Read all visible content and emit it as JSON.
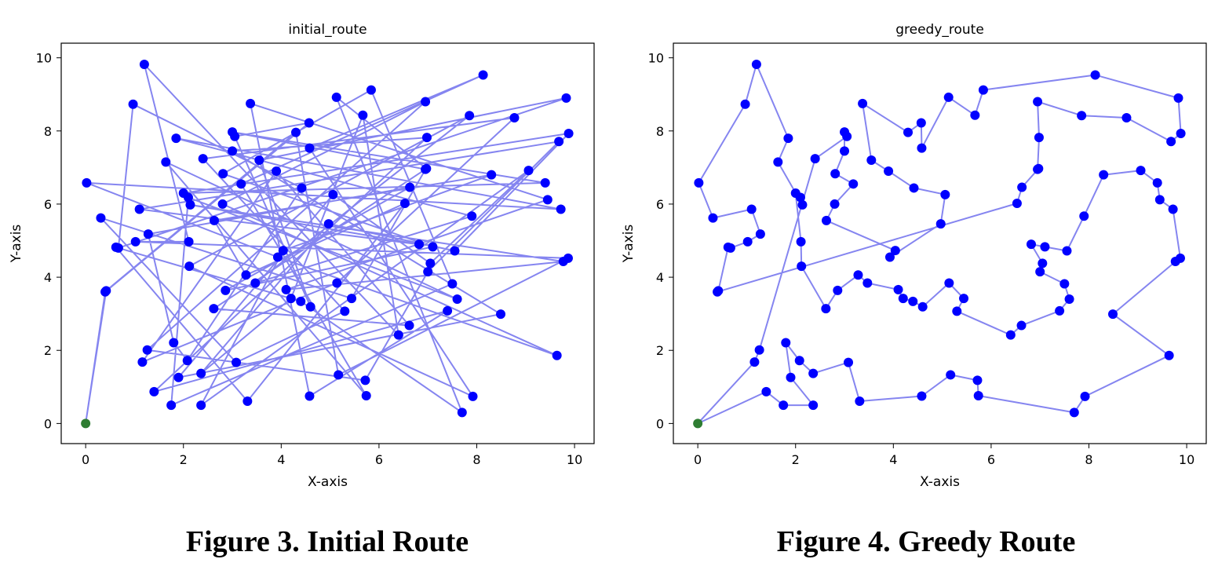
{
  "captions": {
    "left": "Figure 3. Initial Route",
    "right": "Figure 4. Greedy Route"
  },
  "colors": {
    "line": "#8585f0",
    "point": "#0000ff",
    "start": "#2e7d32",
    "axis": "#000000",
    "background": "#ffffff"
  },
  "points": [
    [
      0,
      0
    ],
    [
      1.2,
      9.82
    ],
    [
      0.97,
      8.73
    ],
    [
      0.02,
      6.58
    ],
    [
      0.31,
      5.62
    ],
    [
      1.1,
      5.86
    ],
    [
      1.28,
      5.18
    ],
    [
      1.02,
      4.97
    ],
    [
      0.67,
      4.8
    ],
    [
      0.62,
      4.82
    ],
    [
      0.42,
      3.63
    ],
    [
      0.4,
      3.6
    ],
    [
      1.85,
      7.8
    ],
    [
      1.64,
      7.15
    ],
    [
      2.0,
      6.3
    ],
    [
      2.1,
      6.18
    ],
    [
      2.14,
      5.98
    ],
    [
      2.11,
      4.97
    ],
    [
      2.12,
      4.3
    ],
    [
      2.62,
      3.14
    ],
    [
      2.4,
      7.24
    ],
    [
      2.81,
      6.83
    ],
    [
      3.0,
      7.45
    ],
    [
      3.0,
      7.97
    ],
    [
      3.05,
      7.85
    ],
    [
      3.18,
      6.55
    ],
    [
      2.8,
      6.0
    ],
    [
      2.63,
      5.55
    ],
    [
      3.37,
      8.75
    ],
    [
      3.55,
      7.2
    ],
    [
      3.9,
      6.9
    ],
    [
      4.42,
      6.44
    ],
    [
      4.3,
      7.96
    ],
    [
      4.57,
      8.22
    ],
    [
      4.58,
      7.53
    ],
    [
      5.13,
      8.92
    ],
    [
      5.67,
      8.43
    ],
    [
      5.84,
      9.12
    ],
    [
      5.06,
      6.26
    ],
    [
      4.97,
      5.46
    ],
    [
      3.93,
      4.55
    ],
    [
      4.04,
      4.73
    ],
    [
      3.28,
      4.06
    ],
    [
      3.47,
      3.84
    ],
    [
      2.86,
      3.64
    ],
    [
      4.1,
      3.66
    ],
    [
      4.2,
      3.42
    ],
    [
      4.4,
      3.34
    ],
    [
      4.6,
      3.19
    ],
    [
      5.14,
      3.84
    ],
    [
      5.44,
      3.42
    ],
    [
      5.3,
      3.07
    ],
    [
      6.4,
      2.42
    ],
    [
      6.62,
      2.68
    ],
    [
      7.4,
      3.08
    ],
    [
      7.6,
      3.4
    ],
    [
      7.5,
      3.82
    ],
    [
      7.0,
      4.15
    ],
    [
      7.05,
      4.38
    ],
    [
      7.1,
      4.83
    ],
    [
      6.82,
      4.9
    ],
    [
      7.55,
      4.72
    ],
    [
      7.9,
      5.67
    ],
    [
      6.53,
      6.02
    ],
    [
      6.63,
      6.46
    ],
    [
      6.97,
      6.97
    ],
    [
      6.95,
      6.95
    ],
    [
      6.98,
      7.82
    ],
    [
      6.95,
      8.8
    ],
    [
      7.85,
      8.42
    ],
    [
      8.77,
      8.36
    ],
    [
      9.68,
      7.71
    ],
    [
      9.88,
      7.93
    ],
    [
      9.83,
      8.9
    ],
    [
      8.13,
      9.53
    ],
    [
      8.3,
      6.8
    ],
    [
      9.06,
      6.92
    ],
    [
      9.4,
      6.58
    ],
    [
      9.45,
      6.12
    ],
    [
      9.72,
      5.86
    ],
    [
      9.87,
      4.52
    ],
    [
      9.77,
      4.43
    ],
    [
      8.49,
      2.99
    ],
    [
      9.64,
      1.86
    ],
    [
      7.92,
      0.74
    ],
    [
      7.7,
      0.3
    ],
    [
      5.74,
      0.76
    ],
    [
      5.72,
      1.18
    ],
    [
      5.17,
      1.33
    ],
    [
      4.58,
      0.75
    ],
    [
      3.31,
      0.61
    ],
    [
      3.08,
      1.67
    ],
    [
      2.08,
      1.72
    ],
    [
      2.36,
      1.37
    ],
    [
      1.8,
      2.21
    ],
    [
      1.26,
      2.01
    ],
    [
      1.16,
      1.68
    ],
    [
      1.9,
      1.26
    ],
    [
      1.75,
      0.5
    ],
    [
      2.36,
      0.5
    ],
    [
      1.4,
      0.87
    ]
  ],
  "chart_data": [
    {
      "type": "scatter",
      "title": "initial_route",
      "xlabel": "X-axis",
      "ylabel": "Y-axis",
      "xlim": [
        -0.5,
        10.4
      ],
      "ylim": [
        -0.55,
        10.4
      ],
      "xticks": [
        "0",
        "2",
        "4",
        "6",
        "8",
        "10"
      ],
      "yticks": [
        "0",
        "2",
        "4",
        "6",
        "8",
        "10"
      ],
      "grid": false,
      "start_point": [
        0,
        0
      ],
      "route": [
        0,
        11,
        33,
        24,
        48,
        29,
        73,
        8,
        2,
        31,
        92,
        94,
        6,
        64,
        44,
        59,
        21,
        37,
        56,
        98,
        15,
        55,
        13,
        86,
        25,
        74,
        34,
        84,
        18,
        69,
        43,
        62,
        12,
        79,
        3,
        40,
        83,
        26,
        68,
        95,
        87,
        57,
        71,
        5,
        60,
        16,
        81,
        45,
        78,
        28,
        89,
        54,
        100,
        67,
        22,
        82,
        97,
        38,
        58,
        76,
        99,
        41,
        75,
        27,
        42,
        63,
        90,
        9,
        47,
        85,
        35,
        65,
        19,
        53,
        30,
        96,
        49,
        70,
        20,
        51,
        91,
        4,
        50,
        66,
        23,
        77,
        14,
        72,
        61,
        39,
        93,
        46,
        36,
        52,
        1,
        17,
        7,
        80,
        88,
        32,
        10,
        0
      ]
    },
    {
      "type": "scatter",
      "title": "greedy_route",
      "xlabel": "X-axis",
      "ylabel": "Y-axis",
      "xlim": [
        -0.5,
        10.4
      ],
      "ylim": [
        -0.55,
        10.4
      ],
      "xticks": [
        "0",
        "2",
        "4",
        "6",
        "8",
        "10"
      ],
      "yticks": [
        "0",
        "2",
        "4",
        "6",
        "8",
        "10"
      ],
      "grid": false,
      "start_point": [
        0,
        0
      ],
      "route": [
        0,
        100,
        98,
        99,
        97,
        94,
        92,
        93,
        91,
        90,
        89,
        88,
        87,
        86,
        85,
        84,
        83,
        82,
        81,
        80,
        79,
        78,
        77,
        76,
        75,
        62,
        61,
        59,
        60,
        58,
        57,
        56,
        55,
        54,
        53,
        52,
        51,
        50,
        49,
        48,
        47,
        46,
        45,
        43,
        42,
        44,
        19,
        18,
        17,
        14,
        15,
        16,
        13,
        12,
        1,
        2,
        3,
        4,
        5,
        6,
        7,
        8,
        9,
        10,
        11,
        63,
        64,
        65,
        66,
        67,
        68,
        69,
        70,
        71,
        72,
        73,
        74,
        37,
        36,
        35,
        34,
        33,
        32,
        28,
        29,
        30,
        31,
        38,
        39,
        40,
        41,
        27,
        26,
        25,
        21,
        22,
        23,
        24,
        20,
        95,
        96,
        0
      ]
    }
  ]
}
